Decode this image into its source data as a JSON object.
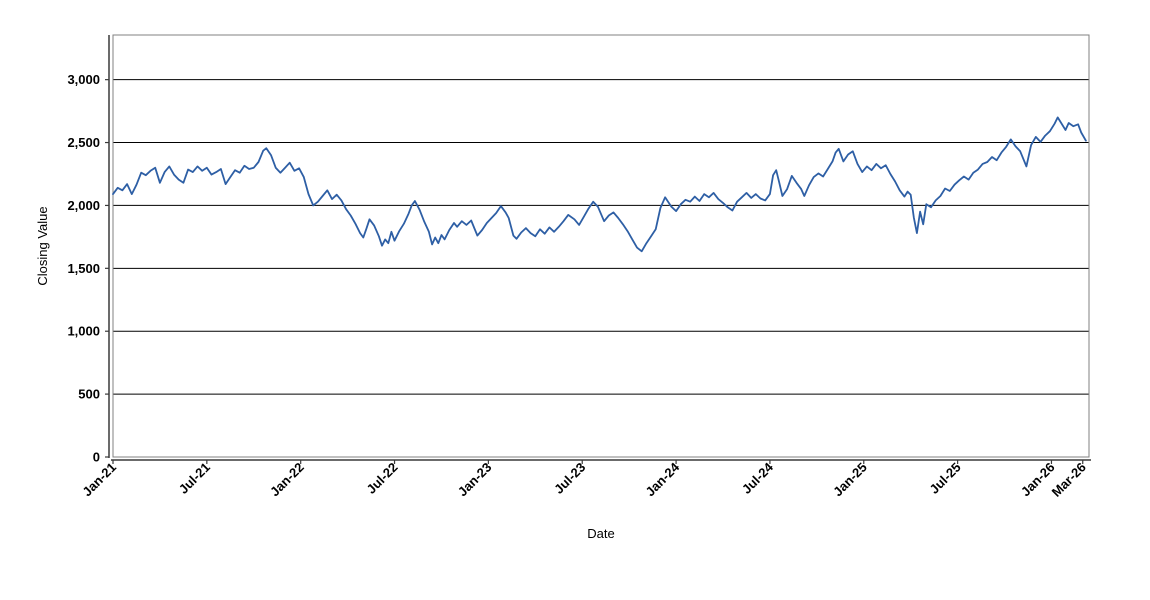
{
  "chart": {
    "xlabel": "Date",
    "ylabel": "Closing Value"
  },
  "chart_data": {
    "type": "line",
    "title": "",
    "xlabel": "Date",
    "ylabel": "Closing Value",
    "legend_position": "none",
    "grid": "horizontal-only",
    "grid_color": "#000000",
    "plot_border_color": "#808080",
    "axis_line_color": "#3a3a3a",
    "background_color": "#ffffff",
    "x_unit": "months since Jan-2021",
    "xlim": [
      0,
      62.4
    ],
    "ylim": [
      0,
      3355
    ],
    "x_ticks": [
      {
        "m": 0,
        "label": "Jan-21"
      },
      {
        "m": 6,
        "label": "Jul-21"
      },
      {
        "m": 12,
        "label": "Jan-22"
      },
      {
        "m": 18,
        "label": "Jul-22"
      },
      {
        "m": 24,
        "label": "Jan-23"
      },
      {
        "m": 30,
        "label": "Jul-23"
      },
      {
        "m": 36,
        "label": "Jan-24"
      },
      {
        "m": 42,
        "label": "Jul-24"
      },
      {
        "m": 48,
        "label": "Jan-25"
      },
      {
        "m": 54,
        "label": "Jul-25"
      },
      {
        "m": 60,
        "label": "Jan-26"
      },
      {
        "m": 62,
        "label": "Mar-26"
      }
    ],
    "y_ticks": [
      {
        "v": 0,
        "label": "0"
      },
      {
        "v": 500,
        "label": "500"
      },
      {
        "v": 1000,
        "label": "1,000"
      },
      {
        "v": 1500,
        "label": "1,500"
      },
      {
        "v": 2000,
        "label": "2,000"
      },
      {
        "v": 2500,
        "label": "2,500"
      },
      {
        "v": 3000,
        "label": "3,000"
      }
    ],
    "series": [
      {
        "name": "Closing Value",
        "color": "#2e5fa5",
        "points": [
          [
            0.0,
            2090
          ],
          [
            0.3,
            2140
          ],
          [
            0.6,
            2120
          ],
          [
            0.9,
            2170
          ],
          [
            1.2,
            2090
          ],
          [
            1.5,
            2165
          ],
          [
            1.8,
            2260
          ],
          [
            2.1,
            2240
          ],
          [
            2.4,
            2275
          ],
          [
            2.7,
            2300
          ],
          [
            3.0,
            2180
          ],
          [
            3.3,
            2265
          ],
          [
            3.6,
            2310
          ],
          [
            3.9,
            2245
          ],
          [
            4.2,
            2205
          ],
          [
            4.5,
            2180
          ],
          [
            4.8,
            2285
          ],
          [
            5.1,
            2265
          ],
          [
            5.4,
            2310
          ],
          [
            5.7,
            2275
          ],
          [
            6.0,
            2300
          ],
          [
            6.3,
            2245
          ],
          [
            6.6,
            2265
          ],
          [
            6.9,
            2290
          ],
          [
            7.2,
            2170
          ],
          [
            7.5,
            2225
          ],
          [
            7.8,
            2280
          ],
          [
            8.1,
            2260
          ],
          [
            8.4,
            2315
          ],
          [
            8.7,
            2290
          ],
          [
            9.0,
            2300
          ],
          [
            9.3,
            2345
          ],
          [
            9.6,
            2435
          ],
          [
            9.8,
            2455
          ],
          [
            10.1,
            2400
          ],
          [
            10.4,
            2300
          ],
          [
            10.7,
            2260
          ],
          [
            11.0,
            2300
          ],
          [
            11.3,
            2340
          ],
          [
            11.6,
            2275
          ],
          [
            11.9,
            2295
          ],
          [
            12.2,
            2225
          ],
          [
            12.5,
            2090
          ],
          [
            12.8,
            2000
          ],
          [
            13.1,
            2030
          ],
          [
            13.4,
            2075
          ],
          [
            13.7,
            2120
          ],
          [
            14.0,
            2050
          ],
          [
            14.3,
            2085
          ],
          [
            14.6,
            2040
          ],
          [
            14.9,
            1970
          ],
          [
            15.2,
            1920
          ],
          [
            15.5,
            1855
          ],
          [
            15.8,
            1780
          ],
          [
            16.0,
            1745
          ],
          [
            16.2,
            1815
          ],
          [
            16.4,
            1890
          ],
          [
            16.7,
            1840
          ],
          [
            17.0,
            1755
          ],
          [
            17.2,
            1680
          ],
          [
            17.4,
            1730
          ],
          [
            17.6,
            1700
          ],
          [
            17.8,
            1790
          ],
          [
            18.0,
            1720
          ],
          [
            18.3,
            1795
          ],
          [
            18.6,
            1855
          ],
          [
            18.9,
            1935
          ],
          [
            19.1,
            2000
          ],
          [
            19.3,
            2035
          ],
          [
            19.6,
            1965
          ],
          [
            19.9,
            1870
          ],
          [
            20.2,
            1790
          ],
          [
            20.4,
            1690
          ],
          [
            20.6,
            1745
          ],
          [
            20.8,
            1700
          ],
          [
            21.0,
            1765
          ],
          [
            21.2,
            1730
          ],
          [
            21.5,
            1805
          ],
          [
            21.8,
            1860
          ],
          [
            22.0,
            1830
          ],
          [
            22.3,
            1875
          ],
          [
            22.6,
            1845
          ],
          [
            22.9,
            1880
          ],
          [
            23.1,
            1820
          ],
          [
            23.3,
            1760
          ],
          [
            23.6,
            1805
          ],
          [
            23.9,
            1860
          ],
          [
            24.2,
            1900
          ],
          [
            24.5,
            1940
          ],
          [
            24.8,
            1995
          ],
          [
            25.1,
            1945
          ],
          [
            25.3,
            1900
          ],
          [
            25.6,
            1760
          ],
          [
            25.8,
            1735
          ],
          [
            26.1,
            1785
          ],
          [
            26.4,
            1820
          ],
          [
            26.7,
            1780
          ],
          [
            27.0,
            1755
          ],
          [
            27.3,
            1810
          ],
          [
            27.6,
            1775
          ],
          [
            27.9,
            1825
          ],
          [
            28.2,
            1790
          ],
          [
            28.5,
            1830
          ],
          [
            28.8,
            1875
          ],
          [
            29.1,
            1925
          ],
          [
            29.5,
            1890
          ],
          [
            29.8,
            1845
          ],
          [
            30.1,
            1910
          ],
          [
            30.4,
            1975
          ],
          [
            30.7,
            2030
          ],
          [
            31.0,
            1990
          ],
          [
            31.4,
            1875
          ],
          [
            31.7,
            1920
          ],
          [
            32.0,
            1945
          ],
          [
            32.3,
            1900
          ],
          [
            32.6,
            1850
          ],
          [
            32.9,
            1795
          ],
          [
            33.2,
            1730
          ],
          [
            33.5,
            1665
          ],
          [
            33.8,
            1635
          ],
          [
            34.1,
            1700
          ],
          [
            34.4,
            1755
          ],
          [
            34.7,
            1810
          ],
          [
            35.0,
            1980
          ],
          [
            35.3,
            2065
          ],
          [
            35.7,
            1990
          ],
          [
            36.0,
            1955
          ],
          [
            36.3,
            2010
          ],
          [
            36.6,
            2045
          ],
          [
            36.9,
            2030
          ],
          [
            37.2,
            2070
          ],
          [
            37.5,
            2035
          ],
          [
            37.8,
            2090
          ],
          [
            38.1,
            2065
          ],
          [
            38.4,
            2100
          ],
          [
            38.7,
            2050
          ],
          [
            39.0,
            2020
          ],
          [
            39.3,
            1985
          ],
          [
            39.6,
            1960
          ],
          [
            39.9,
            2030
          ],
          [
            40.2,
            2065
          ],
          [
            40.5,
            2100
          ],
          [
            40.8,
            2060
          ],
          [
            41.1,
            2090
          ],
          [
            41.4,
            2055
          ],
          [
            41.7,
            2040
          ],
          [
            42.0,
            2090
          ],
          [
            42.2,
            2240
          ],
          [
            42.4,
            2280
          ],
          [
            42.6,
            2180
          ],
          [
            42.8,
            2075
          ],
          [
            43.1,
            2130
          ],
          [
            43.4,
            2235
          ],
          [
            43.7,
            2180
          ],
          [
            44.0,
            2130
          ],
          [
            44.2,
            2075
          ],
          [
            44.5,
            2160
          ],
          [
            44.8,
            2225
          ],
          [
            45.1,
            2255
          ],
          [
            45.4,
            2230
          ],
          [
            45.7,
            2290
          ],
          [
            46.0,
            2350
          ],
          [
            46.2,
            2420
          ],
          [
            46.4,
            2450
          ],
          [
            46.7,
            2350
          ],
          [
            47.0,
            2405
          ],
          [
            47.3,
            2430
          ],
          [
            47.6,
            2330
          ],
          [
            47.9,
            2265
          ],
          [
            48.2,
            2310
          ],
          [
            48.5,
            2280
          ],
          [
            48.8,
            2330
          ],
          [
            49.1,
            2295
          ],
          [
            49.4,
            2320
          ],
          [
            49.7,
            2250
          ],
          [
            50.0,
            2190
          ],
          [
            50.3,
            2120
          ],
          [
            50.6,
            2070
          ],
          [
            50.8,
            2110
          ],
          [
            51.0,
            2085
          ],
          [
            51.2,
            1905
          ],
          [
            51.4,
            1780
          ],
          [
            51.6,
            1950
          ],
          [
            51.8,
            1850
          ],
          [
            52.0,
            2010
          ],
          [
            52.3,
            1985
          ],
          [
            52.6,
            2040
          ],
          [
            52.9,
            2075
          ],
          [
            53.2,
            2135
          ],
          [
            53.5,
            2115
          ],
          [
            53.8,
            2165
          ],
          [
            54.1,
            2200
          ],
          [
            54.4,
            2230
          ],
          [
            54.7,
            2205
          ],
          [
            55.0,
            2260
          ],
          [
            55.3,
            2285
          ],
          [
            55.6,
            2330
          ],
          [
            55.9,
            2345
          ],
          [
            56.2,
            2385
          ],
          [
            56.5,
            2360
          ],
          [
            56.8,
            2420
          ],
          [
            57.1,
            2465
          ],
          [
            57.4,
            2525
          ],
          [
            57.7,
            2470
          ],
          [
            58.0,
            2430
          ],
          [
            58.4,
            2310
          ],
          [
            58.7,
            2480
          ],
          [
            59.0,
            2545
          ],
          [
            59.3,
            2505
          ],
          [
            59.6,
            2555
          ],
          [
            59.9,
            2590
          ],
          [
            60.2,
            2650
          ],
          [
            60.4,
            2700
          ],
          [
            60.6,
            2660
          ],
          [
            60.9,
            2600
          ],
          [
            61.1,
            2655
          ],
          [
            61.4,
            2630
          ],
          [
            61.7,
            2645
          ],
          [
            61.9,
            2580
          ],
          [
            62.2,
            2515
          ]
        ]
      }
    ]
  }
}
